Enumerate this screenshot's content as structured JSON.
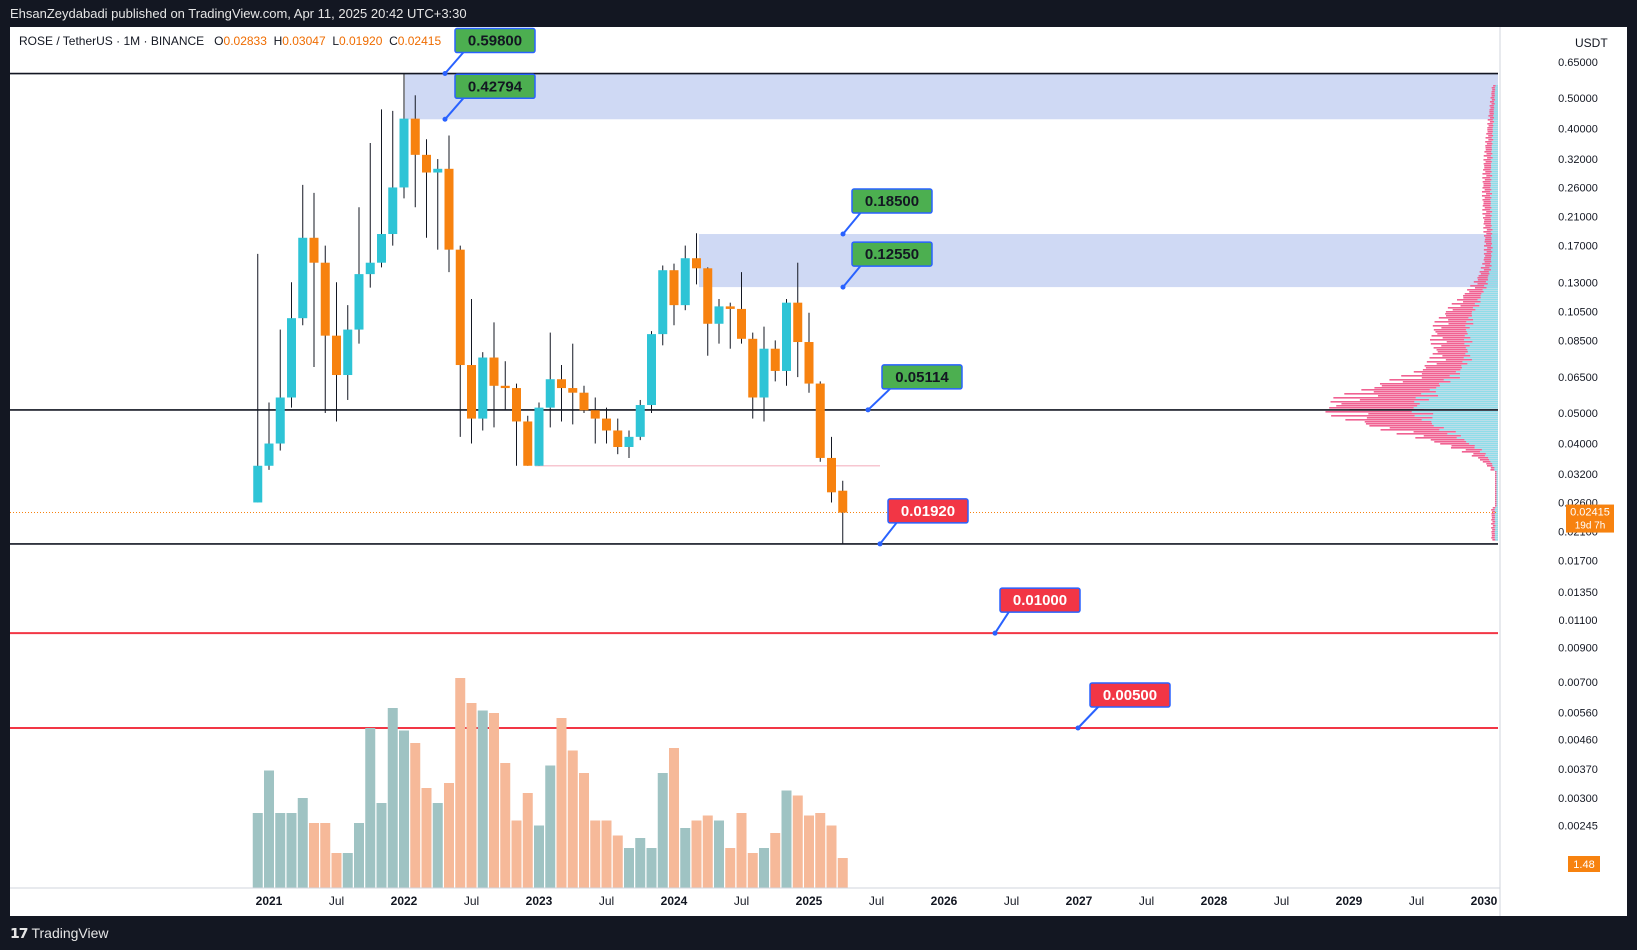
{
  "header": {
    "publisher_line": "EhsanZeydabadi published on TradingView.com, Apr 11, 2025 20:42 UTC+3:30"
  },
  "legend": {
    "symbol": "ROSE / TetherUS · 1M · BINANCE",
    "open_label": "O",
    "open": "0.02833",
    "high_label": "H",
    "high": "0.03047",
    "low_label": "L",
    "low": "0.01920",
    "close_label": "C",
    "close": "0.02415"
  },
  "price_axis": {
    "currency": "USDT",
    "ticks": [
      "0.65000",
      "0.50000",
      "0.40000",
      "0.32000",
      "0.26000",
      "0.21000",
      "0.17000",
      "0.13000",
      "0.10500",
      "0.08500",
      "0.06500",
      "0.05000",
      "0.04000",
      "0.03200",
      "0.02600",
      "0.02100",
      "0.01700",
      "0.01350",
      "0.01100",
      "0.00900",
      "0.00700",
      "0.00560",
      "0.00460",
      "0.00370",
      "0.00300",
      "0.00245"
    ],
    "current_price": "0.02415",
    "countdown": "19d 7h",
    "volume_badge": "1.48"
  },
  "footer": {
    "logo": "𝟭𝟳",
    "brand": "TradingView"
  },
  "colors": {
    "bull": "#2ec4d6",
    "bear": "#f7820f",
    "bull_vol": "#9fc3c3",
    "bear_vol": "#f6b999",
    "zone": "#cfd9f4",
    "green_label": "#4caf50",
    "red_label": "#f23645",
    "profile_pink": "#f06292",
    "profile_teal": "#8fdde9"
  },
  "chart_data": {
    "type": "candlestick",
    "title": "ROSE / TetherUS · 1M · BINANCE",
    "scale": "log",
    "ylim": [
      0.00245,
      0.65
    ],
    "x_tick_labels": [
      "2021",
      "Jul",
      "2022",
      "Jul",
      "2023",
      "Jul",
      "2024",
      "Jul",
      "2025",
      "Jul",
      "2026",
      "Jul",
      "2027",
      "Jul",
      "2028",
      "Jul",
      "2029",
      "Jul",
      "2030"
    ],
    "candles": [
      {
        "date": "2020-12",
        "o": 0.026,
        "h": 0.16,
        "l": 0.026,
        "c": 0.034
      },
      {
        "date": "2021-01",
        "o": 0.034,
        "h": 0.054,
        "l": 0.033,
        "c": 0.04
      },
      {
        "date": "2021-02",
        "o": 0.04,
        "h": 0.092,
        "l": 0.038,
        "c": 0.056
      },
      {
        "date": "2021-03",
        "o": 0.056,
        "h": 0.13,
        "l": 0.052,
        "c": 0.1
      },
      {
        "date": "2021-04",
        "o": 0.1,
        "h": 0.265,
        "l": 0.095,
        "c": 0.18
      },
      {
        "date": "2021-05",
        "o": 0.18,
        "h": 0.25,
        "l": 0.07,
        "c": 0.15
      },
      {
        "date": "2021-06",
        "o": 0.15,
        "h": 0.17,
        "l": 0.05,
        "c": 0.088
      },
      {
        "date": "2021-07",
        "o": 0.088,
        "h": 0.13,
        "l": 0.047,
        "c": 0.066
      },
      {
        "date": "2021-08",
        "o": 0.066,
        "h": 0.11,
        "l": 0.055,
        "c": 0.092
      },
      {
        "date": "2021-09",
        "o": 0.092,
        "h": 0.225,
        "l": 0.083,
        "c": 0.138
      },
      {
        "date": "2021-10",
        "o": 0.138,
        "h": 0.36,
        "l": 0.125,
        "c": 0.15
      },
      {
        "date": "2021-11",
        "o": 0.15,
        "h": 0.46,
        "l": 0.145,
        "c": 0.185
      },
      {
        "date": "2021-12",
        "o": 0.185,
        "h": 0.455,
        "l": 0.17,
        "c": 0.26
      },
      {
        "date": "2022-01",
        "o": 0.26,
        "h": 0.598,
        "l": 0.24,
        "c": 0.43
      },
      {
        "date": "2022-02",
        "o": 0.43,
        "h": 0.51,
        "l": 0.225,
        "c": 0.33
      },
      {
        "date": "2022-03",
        "o": 0.33,
        "h": 0.37,
        "l": 0.18,
        "c": 0.29
      },
      {
        "date": "2022-04",
        "o": 0.29,
        "h": 0.32,
        "l": 0.165,
        "c": 0.298
      },
      {
        "date": "2022-05",
        "o": 0.298,
        "h": 0.38,
        "l": 0.14,
        "c": 0.165
      },
      {
        "date": "2022-06",
        "o": 0.165,
        "h": 0.17,
        "l": 0.042,
        "c": 0.071
      },
      {
        "date": "2022-07",
        "o": 0.071,
        "h": 0.115,
        "l": 0.04,
        "c": 0.048
      },
      {
        "date": "2022-08",
        "o": 0.048,
        "h": 0.078,
        "l": 0.044,
        "c": 0.075
      },
      {
        "date": "2022-09",
        "o": 0.075,
        "h": 0.097,
        "l": 0.045,
        "c": 0.061
      },
      {
        "date": "2022-10",
        "o": 0.061,
        "h": 0.073,
        "l": 0.051,
        "c": 0.06
      },
      {
        "date": "2022-11",
        "o": 0.06,
        "h": 0.062,
        "l": 0.034,
        "c": 0.047
      },
      {
        "date": "2022-12",
        "o": 0.047,
        "h": 0.049,
        "l": 0.034,
        "c": 0.034
      },
      {
        "date": "2023-01",
        "o": 0.034,
        "h": 0.054,
        "l": 0.034,
        "c": 0.052
      },
      {
        "date": "2023-02",
        "o": 0.052,
        "h": 0.09,
        "l": 0.045,
        "c": 0.064
      },
      {
        "date": "2023-03",
        "o": 0.064,
        "h": 0.071,
        "l": 0.047,
        "c": 0.06
      },
      {
        "date": "2023-04",
        "o": 0.06,
        "h": 0.083,
        "l": 0.046,
        "c": 0.058
      },
      {
        "date": "2023-05",
        "o": 0.058,
        "h": 0.061,
        "l": 0.05,
        "c": 0.051
      },
      {
        "date": "2023-06",
        "o": 0.051,
        "h": 0.056,
        "l": 0.04,
        "c": 0.048
      },
      {
        "date": "2023-07",
        "o": 0.048,
        "h": 0.052,
        "l": 0.04,
        "c": 0.044
      },
      {
        "date": "2023-08",
        "o": 0.044,
        "h": 0.048,
        "l": 0.037,
        "c": 0.039
      },
      {
        "date": "2023-09",
        "o": 0.039,
        "h": 0.044,
        "l": 0.036,
        "c": 0.042
      },
      {
        "date": "2023-10",
        "o": 0.042,
        "h": 0.055,
        "l": 0.041,
        "c": 0.053
      },
      {
        "date": "2023-11",
        "o": 0.053,
        "h": 0.091,
        "l": 0.05,
        "c": 0.089
      },
      {
        "date": "2023-12",
        "o": 0.089,
        "h": 0.147,
        "l": 0.082,
        "c": 0.142
      },
      {
        "date": "2024-01",
        "o": 0.142,
        "h": 0.149,
        "l": 0.095,
        "c": 0.11
      },
      {
        "date": "2024-02",
        "o": 0.11,
        "h": 0.17,
        "l": 0.106,
        "c": 0.155
      },
      {
        "date": "2024-03",
        "o": 0.155,
        "h": 0.186,
        "l": 0.128,
        "c": 0.144
      },
      {
        "date": "2024-04",
        "o": 0.144,
        "h": 0.145,
        "l": 0.076,
        "c": 0.096
      },
      {
        "date": "2024-05",
        "o": 0.096,
        "h": 0.115,
        "l": 0.083,
        "c": 0.109
      },
      {
        "date": "2024-06",
        "o": 0.109,
        "h": 0.112,
        "l": 0.08,
        "c": 0.107
      },
      {
        "date": "2024-07",
        "o": 0.107,
        "h": 0.14,
        "l": 0.083,
        "c": 0.086
      },
      {
        "date": "2024-08",
        "o": 0.086,
        "h": 0.09,
        "l": 0.048,
        "c": 0.056
      },
      {
        "date": "2024-09",
        "o": 0.056,
        "h": 0.094,
        "l": 0.047,
        "c": 0.08
      },
      {
        "date": "2024-10",
        "o": 0.08,
        "h": 0.085,
        "l": 0.063,
        "c": 0.068
      },
      {
        "date": "2024-11",
        "o": 0.068,
        "h": 0.115,
        "l": 0.061,
        "c": 0.112
      },
      {
        "date": "2024-12",
        "o": 0.112,
        "h": 0.15,
        "l": 0.065,
        "c": 0.084
      },
      {
        "date": "2025-01",
        "o": 0.084,
        "h": 0.104,
        "l": 0.058,
        "c": 0.062
      },
      {
        "date": "2025-02",
        "o": 0.062,
        "h": 0.063,
        "l": 0.035,
        "c": 0.036
      },
      {
        "date": "2025-03",
        "o": 0.036,
        "h": 0.042,
        "l": 0.026,
        "c": 0.028
      },
      {
        "date": "2025-04",
        "o": 0.02833,
        "h": 0.03047,
        "l": 0.0192,
        "c": 0.02415
      }
    ],
    "volume_relative": [
      0.3,
      0.47,
      0.3,
      0.3,
      0.36,
      0.26,
      0.26,
      0.14,
      0.14,
      0.26,
      0.64,
      0.34,
      0.72,
      0.63,
      0.58,
      0.4,
      0.34,
      0.42,
      0.84,
      0.74,
      0.71,
      0.7,
      0.5,
      0.27,
      0.38,
      0.25,
      0.49,
      0.68,
      0.55,
      0.46,
      0.27,
      0.27,
      0.21,
      0.16,
      0.2,
      0.16,
      0.46,
      0.56,
      0.24,
      0.27,
      0.29,
      0.27,
      0.16,
      0.3,
      0.14,
      0.16,
      0.22,
      0.39,
      0.37,
      0.29,
      0.3,
      0.25,
      0.12
    ],
    "levels": [
      {
        "price": 0.598,
        "label": "0.59800",
        "kind": "green"
      },
      {
        "price": 0.42794,
        "label": "0.42794",
        "kind": "green"
      },
      {
        "price": 0.185,
        "label": "0.18500",
        "kind": "green"
      },
      {
        "price": 0.1255,
        "label": "0.12550",
        "kind": "green"
      },
      {
        "price": 0.05114,
        "label": "0.05114",
        "kind": "green"
      },
      {
        "price": 0.0192,
        "label": "0.01920",
        "kind": "red"
      },
      {
        "price": 0.01,
        "label": "0.01000",
        "kind": "red"
      },
      {
        "price": 0.005,
        "label": "0.00500",
        "kind": "red"
      }
    ],
    "zones": [
      {
        "from": 0.42794,
        "to": 0.598
      },
      {
        "from": 0.1255,
        "to": 0.185
      }
    ],
    "horizontal_lines": [
      0.598,
      0.05114,
      0.0192
    ],
    "red_lines": [
      0.01,
      0.005
    ]
  }
}
